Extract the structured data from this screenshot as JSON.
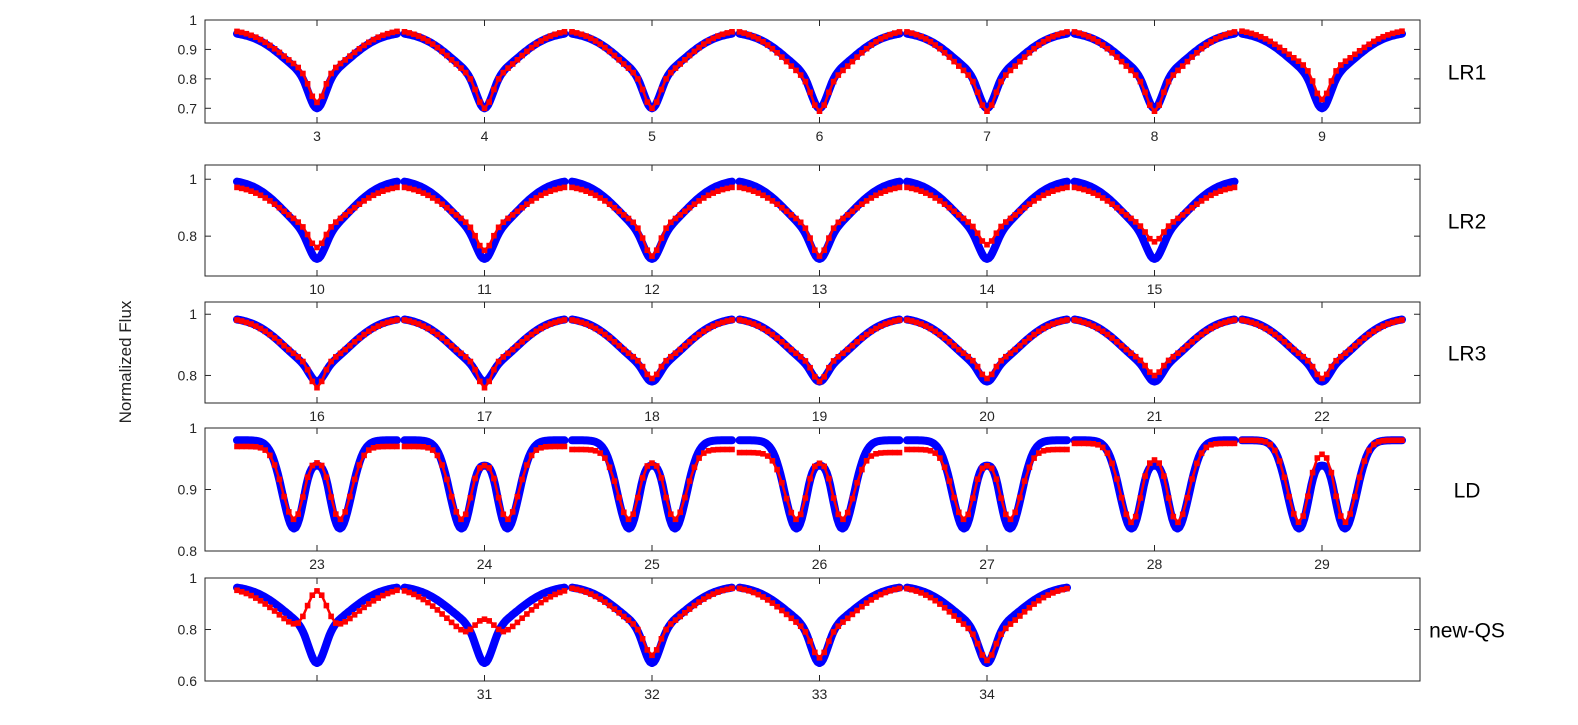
{
  "chart_data": {
    "type": "line",
    "ylabel": "Normalized Flux",
    "panels": [
      {
        "label": "LR1",
        "ylim": [
          0.65,
          1.0
        ],
        "yticks": [
          0.7,
          0.8,
          0.9,
          1
        ],
        "ytick_labels": [
          "0.7",
          "0.8",
          "0.9",
          "1"
        ],
        "xtick_labels": [
          "3",
          "4",
          "5",
          "6",
          "7",
          "8",
          "9"
        ],
        "model": {
          "shape": "single",
          "depth": 0.7,
          "edge": 0.96
        },
        "observed": [
          {
            "min": 0.72,
            "edge": 0.97
          },
          {
            "min": 0.7,
            "edge": 0.97
          },
          {
            "min": 0.7,
            "edge": 0.97
          },
          {
            "min": 0.69,
            "edge": 0.97
          },
          {
            "min": 0.69,
            "edge": 0.97
          },
          {
            "min": 0.69,
            "edge": 0.97
          },
          {
            "min": 0.73,
            "edge": 0.97
          }
        ]
      },
      {
        "label": "LR2",
        "ylim": [
          0.66,
          1.05
        ],
        "yticks": [
          0.8,
          1
        ],
        "ytick_labels": [
          "0.8",
          "1"
        ],
        "xtick_labels": [
          "10",
          "11",
          "12",
          "13",
          "14",
          "15"
        ],
        "model": {
          "shape": "single",
          "depth": 0.72,
          "edge": 1.0
        },
        "observed": [
          {
            "min": 0.76,
            "edge": 0.98
          },
          {
            "min": 0.75,
            "edge": 0.98
          },
          {
            "min": 0.73,
            "edge": 0.98
          },
          {
            "min": 0.73,
            "edge": 0.98
          },
          {
            "min": 0.77,
            "edge": 0.98
          },
          {
            "min": 0.78,
            "edge": 0.98
          }
        ]
      },
      {
        "label": "LR3",
        "ylim": [
          0.71,
          1.04
        ],
        "yticks": [
          0.8,
          1
        ],
        "ytick_labels": [
          "0.8",
          "1"
        ],
        "xtick_labels": [
          "16",
          "17",
          "18",
          "19",
          "20",
          "21",
          "22"
        ],
        "model": {
          "shape": "bump",
          "depth": 0.78,
          "edge": 0.99
        },
        "observed": [
          {
            "min": 0.76,
            "edge": 0.99
          },
          {
            "min": 0.76,
            "edge": 0.99
          },
          {
            "min": 0.79,
            "edge": 0.99
          },
          {
            "min": 0.78,
            "edge": 0.99
          },
          {
            "min": 0.79,
            "edge": 0.99
          },
          {
            "min": 0.8,
            "edge": 0.99
          },
          {
            "min": 0.79,
            "edge": 0.99
          }
        ]
      },
      {
        "label": "LD",
        "ylim": [
          0.8,
          1.0
        ],
        "yticks": [
          0.8,
          0.9,
          1
        ],
        "ytick_labels": [
          "0.8",
          "0.9",
          "1"
        ],
        "xtick_labels": [
          "23",
          "24",
          "25",
          "26",
          "27",
          "28",
          "29"
        ],
        "model": {
          "shape": "double",
          "depth": 0.835,
          "edge": 0.98,
          "peak": 0.94
        },
        "observed": [
          {
            "min": 0.85,
            "edge": 0.97,
            "peak": 0.945
          },
          {
            "min": 0.85,
            "edge": 0.97,
            "peak": 0.94
          },
          {
            "min": 0.85,
            "edge": 0.965,
            "peak": 0.945
          },
          {
            "min": 0.85,
            "edge": 0.96,
            "peak": 0.945
          },
          {
            "min": 0.85,
            "edge": 0.965,
            "peak": 0.94
          },
          {
            "min": 0.845,
            "edge": 0.975,
            "peak": 0.95
          },
          {
            "min": 0.845,
            "edge": 0.98,
            "peak": 0.96
          }
        ]
      },
      {
        "label": "new-QS",
        "ylim": [
          0.6,
          1.0
        ],
        "yticks": [
          0.6,
          0.8,
          1
        ],
        "ytick_labels": [
          "0.6",
          "0.8",
          "1"
        ],
        "xtick_labels": [
          "",
          "31",
          "32",
          "33",
          "34"
        ],
        "model": {
          "shape": "single",
          "depth": 0.67,
          "edge": 0.97
        },
        "observed": [
          {
            "min": 0.8,
            "edge": 0.97,
            "hump": 0.95
          },
          {
            "min": 0.78,
            "edge": 0.97,
            "hump": 0.84
          },
          {
            "min": 0.7,
            "edge": 0.97
          },
          {
            "min": 0.69,
            "edge": 0.97
          },
          {
            "min": 0.68,
            "edge": 0.97
          }
        ]
      }
    ],
    "series": [
      {
        "color": "#0000ff"
      },
      {
        "color": "#ff0000"
      }
    ]
  }
}
